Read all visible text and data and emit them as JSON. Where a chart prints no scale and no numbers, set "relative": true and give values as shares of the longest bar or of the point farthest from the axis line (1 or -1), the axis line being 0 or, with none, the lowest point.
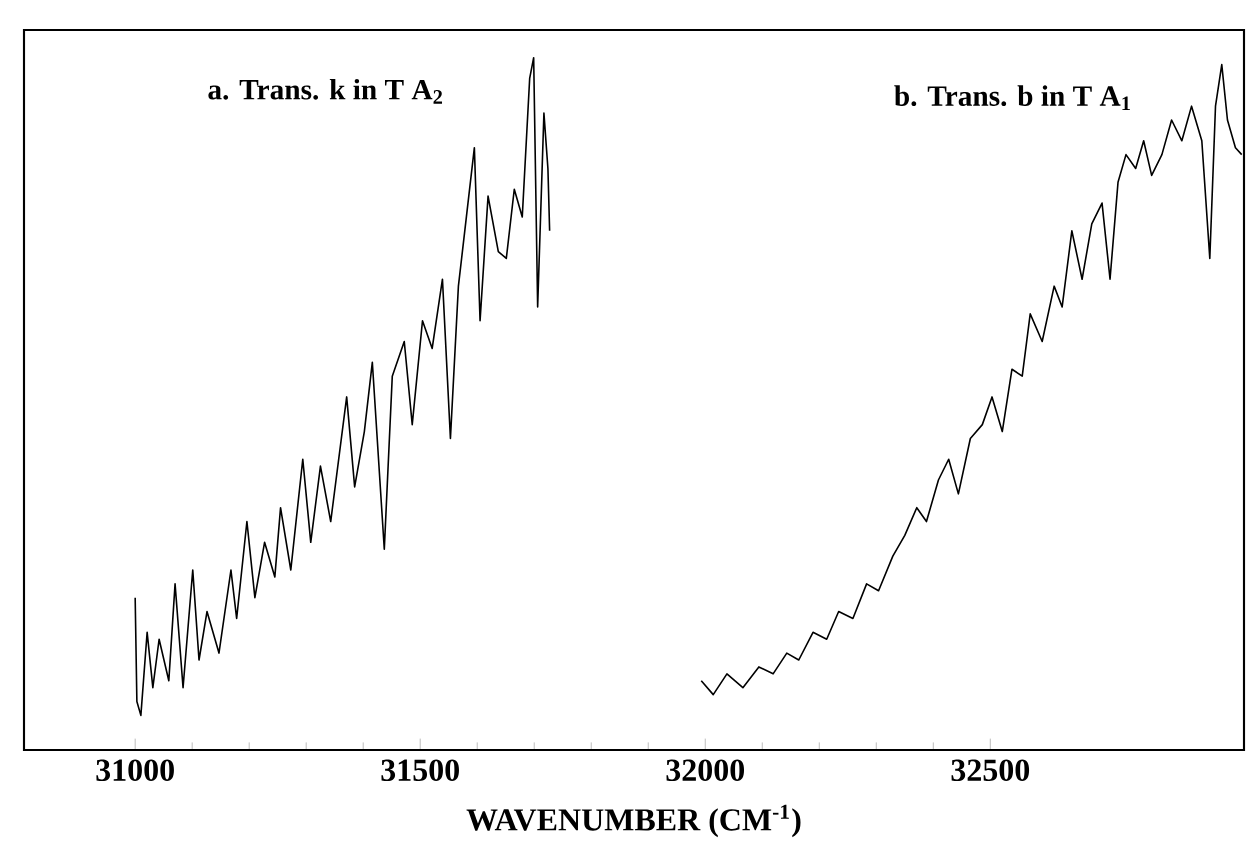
{
  "chart_data": {
    "type": "line",
    "relative": true,
    "xlabel": "WAVENUMBER (CM$^{-1}$)",
    "xlim": [
      30805,
      32945
    ],
    "xticks": [
      31000,
      31500,
      32000,
      32500
    ],
    "series": [
      {
        "name": "a. Trans. k in T A$_{2}$",
        "color": "#000000",
        "x": [
          31000,
          31003,
          31010,
          31021,
          31031,
          31042,
          31059,
          31070,
          31084,
          31101,
          31112,
          31126,
          31147,
          31168,
          31178,
          31196,
          31210,
          31227,
          31245,
          31255,
          31273,
          31294,
          31308,
          31325,
          31343,
          31371,
          31385,
          31402,
          31416,
          31437,
          31451,
          31472,
          31486,
          31504,
          31521,
          31539,
          31553,
          31567,
          31581,
          31595,
          31605,
          31619,
          31637,
          31651,
          31665,
          31679,
          31692,
          31699,
          31706,
          31717,
          31724,
          31727
        ],
        "values": [
          0.22,
          0.07,
          0.05,
          0.17,
          0.09,
          0.16,
          0.1,
          0.24,
          0.09,
          0.26,
          0.13,
          0.2,
          0.14,
          0.26,
          0.19,
          0.33,
          0.22,
          0.3,
          0.25,
          0.35,
          0.26,
          0.42,
          0.3,
          0.41,
          0.33,
          0.51,
          0.38,
          0.46,
          0.56,
          0.29,
          0.54,
          0.59,
          0.47,
          0.62,
          0.58,
          0.68,
          0.45,
          0.67,
          0.77,
          0.87,
          0.62,
          0.8,
          0.72,
          0.71,
          0.81,
          0.77,
          0.97,
          1.0,
          0.64,
          0.92,
          0.84,
          0.75
        ]
      },
      {
        "name": "b. Trans. b in T A$_{1}$",
        "color": "#000000",
        "x": [
          31993,
          32014,
          32038,
          32066,
          32094,
          32119,
          32143,
          32164,
          32189,
          32213,
          32234,
          32259,
          32283,
          32304,
          32329,
          32350,
          32371,
          32388,
          32409,
          32427,
          32444,
          32465,
          32486,
          32503,
          32521,
          32538,
          32556,
          32570,
          32591,
          32612,
          32626,
          32643,
          32661,
          32678,
          32696,
          32710,
          32724,
          32738,
          32755,
          32769,
          32783,
          32801,
          32818,
          32836,
          32853,
          32871,
          32885,
          32895,
          32906,
          32916,
          32930,
          32941
        ],
        "values": [
          0.1,
          0.08,
          0.11,
          0.09,
          0.12,
          0.11,
          0.14,
          0.13,
          0.17,
          0.16,
          0.2,
          0.19,
          0.24,
          0.23,
          0.28,
          0.31,
          0.35,
          0.33,
          0.39,
          0.42,
          0.37,
          0.45,
          0.47,
          0.51,
          0.46,
          0.55,
          0.54,
          0.63,
          0.59,
          0.67,
          0.64,
          0.75,
          0.68,
          0.76,
          0.79,
          0.68,
          0.82,
          0.86,
          0.84,
          0.88,
          0.83,
          0.86,
          0.91,
          0.88,
          0.93,
          0.88,
          0.71,
          0.93,
          0.99,
          0.91,
          0.87,
          0.86
        ]
      }
    ]
  }
}
